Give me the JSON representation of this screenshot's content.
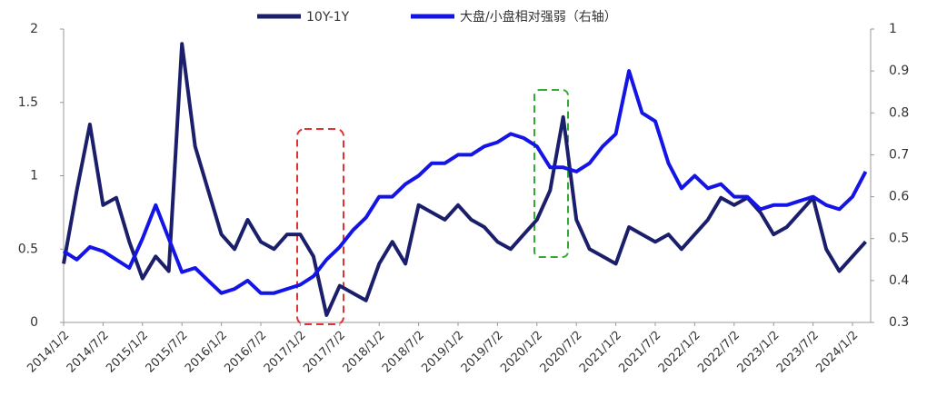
{
  "chart_data": {
    "type": "line",
    "categories": [
      "2014/1/2",
      null,
      null,
      "2014/7/2",
      null,
      null,
      "2015/1/2",
      null,
      null,
      "2015/7/2",
      null,
      null,
      "2016/1/2",
      null,
      null,
      "2016/7/2",
      null,
      null,
      "2017/1/2",
      null,
      null,
      "2017/7/2",
      null,
      null,
      "2018/1/2",
      null,
      null,
      "2018/7/2",
      null,
      null,
      "2019/1/2",
      null,
      null,
      "2019/7/2",
      null,
      null,
      "2020/1/2",
      null,
      null,
      "2020/7/2",
      null,
      null,
      "2021/1/2",
      null,
      null,
      "2021/7/2",
      null,
      null,
      "2022/1/2",
      null,
      null,
      "2022/7/2",
      null,
      null,
      "2023/1/2",
      null,
      null,
      "2023/7/2",
      null,
      null,
      "2024/1/2",
      null
    ],
    "series": [
      {
        "name": "10Y-1Y",
        "color": "#1b1f6b",
        "axis": "y",
        "values": [
          0.4,
          0.9,
          1.35,
          0.8,
          0.85,
          0.55,
          0.3,
          0.45,
          0.35,
          1.9,
          1.2,
          0.9,
          0.6,
          0.5,
          0.7,
          0.55,
          0.5,
          0.6,
          0.6,
          0.45,
          0.05,
          0.25,
          0.2,
          0.15,
          0.4,
          0.55,
          0.4,
          0.8,
          0.75,
          0.7,
          0.8,
          0.7,
          0.65,
          0.55,
          0.5,
          0.6,
          0.7,
          0.9,
          1.4,
          0.7,
          0.5,
          0.45,
          0.4,
          0.65,
          0.6,
          0.55,
          0.6,
          0.5,
          0.6,
          0.7,
          0.85,
          0.8,
          0.85,
          0.75,
          0.6,
          0.65,
          0.75,
          0.85,
          0.5,
          0.35,
          0.45,
          0.55
        ]
      },
      {
        "name": "大盘/小盘相对强弱（右轴）",
        "color": "#1414e6",
        "axis": "y2",
        "values": [
          0.47,
          0.45,
          0.48,
          0.47,
          0.45,
          0.43,
          0.5,
          0.58,
          0.5,
          0.42,
          0.43,
          0.4,
          0.37,
          0.38,
          0.4,
          0.37,
          0.37,
          0.38,
          0.39,
          0.41,
          0.45,
          0.48,
          0.52,
          0.55,
          0.6,
          0.6,
          0.63,
          0.65,
          0.68,
          0.68,
          0.7,
          0.7,
          0.72,
          0.73,
          0.75,
          0.74,
          0.72,
          0.67,
          0.67,
          0.66,
          0.68,
          0.72,
          0.75,
          0.9,
          0.8,
          0.78,
          0.68,
          0.62,
          0.65,
          0.62,
          0.63,
          0.6,
          0.6,
          0.57,
          0.58,
          0.58,
          0.59,
          0.6,
          0.58,
          0.57,
          0.6,
          0.66
        ]
      }
    ],
    "ylim": [
      0,
      2
    ],
    "yticks": [
      0,
      0.5,
      1,
      1.5,
      2
    ],
    "y2lim": [
      0.3,
      1
    ],
    "y2ticks": [
      0.3,
      0.4,
      0.5,
      0.6,
      0.7,
      0.8,
      0.9,
      1
    ],
    "legend": "top"
  }
}
